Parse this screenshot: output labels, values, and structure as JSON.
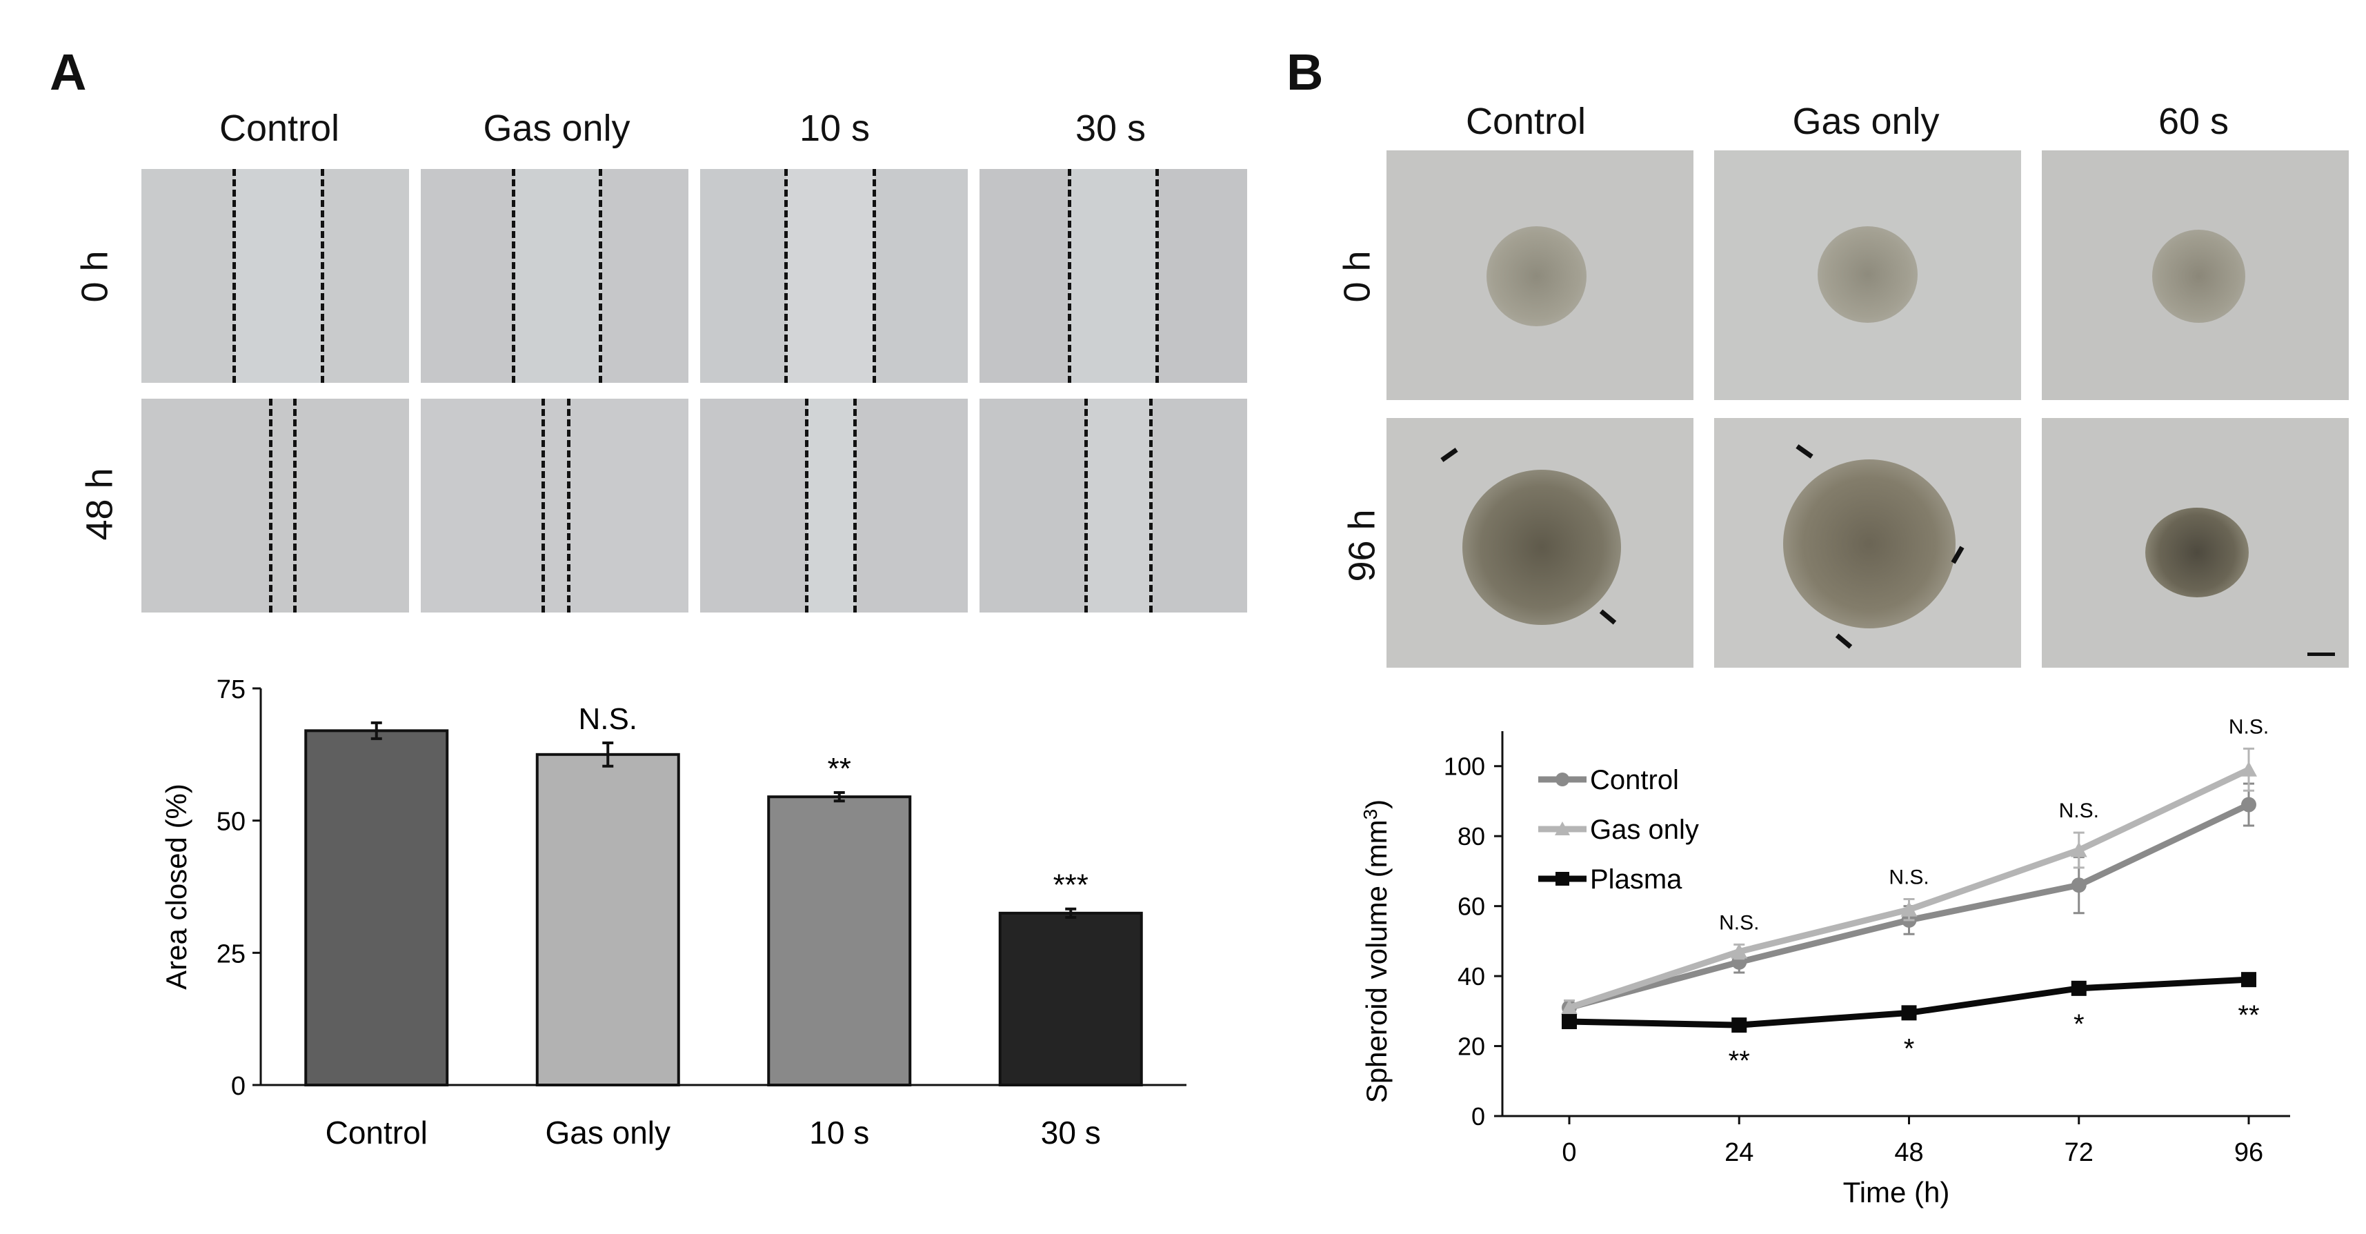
{
  "panel_a": {
    "letter": "A",
    "columns": [
      "Control",
      "Gas only",
      "10 s",
      "30 s"
    ],
    "rows": [
      "0 h",
      "48 h"
    ],
    "micro_label": "wound-healing micrographs"
  },
  "panel_b": {
    "letter": "B",
    "columns": [
      "Control",
      "Gas only",
      "60 s"
    ],
    "rows": [
      "0 h",
      "96 h"
    ],
    "micro_label": "spheroid micrographs"
  },
  "colors": {
    "control_bar": "#5f5f5f",
    "gas_bar": "#b2b2b2",
    "s10_bar": "#898989",
    "s30_bar": "#242424",
    "control_line": "#8a8a8a",
    "gas_line": "#b5b5b5",
    "plasma_line": "#0a0a0a"
  },
  "chart_data": [
    {
      "type": "bar",
      "title": "",
      "categories": [
        "Control",
        "Gas only",
        "10 s",
        "30 s"
      ],
      "values": [
        67,
        62.5,
        54.5,
        32.5
      ],
      "errors": [
        1.5,
        2.2,
        0.8,
        0.8
      ],
      "annotations": [
        "",
        "N.S.",
        "**",
        "***"
      ],
      "xlabel": "",
      "ylabel": "Area closed (%)",
      "ylim": [
        0,
        75
      ],
      "yticks": [
        0,
        25,
        50,
        75
      ]
    },
    {
      "type": "line",
      "x": [
        0,
        24,
        48,
        72,
        96
      ],
      "xlabel": "Time (h)",
      "ylabel_main": "Spheroid volume (mm",
      "ylabel_sup": "3",
      "ylabel_end": ")",
      "ylim": [
        0,
        110
      ],
      "yticks": [
        0,
        20,
        40,
        60,
        80,
        100
      ],
      "xticks": [
        0,
        24,
        48,
        72,
        96
      ],
      "series": [
        {
          "name": "Control",
          "values": [
            31,
            44,
            56,
            66,
            89
          ],
          "errors": [
            2,
            3,
            4,
            8,
            6
          ]
        },
        {
          "name": "Gas only",
          "values": [
            31,
            47,
            59,
            76,
            99
          ],
          "errors": [
            2,
            2,
            3,
            5,
            6
          ]
        },
        {
          "name": "Plasma",
          "values": [
            27,
            26,
            29.5,
            36.5,
            39
          ],
          "errors": [
            1,
            1,
            1,
            1,
            1
          ]
        }
      ],
      "top_annotations": [
        "",
        "N.S.",
        "N.S.",
        "N.S.",
        "N.S."
      ],
      "bottom_annotations": [
        "",
        "**",
        "*",
        "*",
        "**"
      ],
      "legend": "top-left"
    }
  ]
}
